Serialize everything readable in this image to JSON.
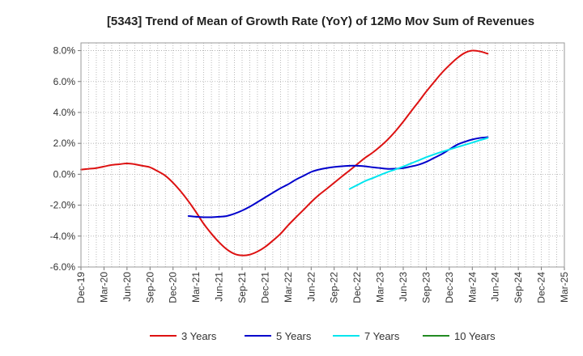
{
  "chart_data": {
    "type": "line",
    "title": "[5343]  Trend of Mean of Growth Rate (YoY) of 12Mo Mov Sum of Revenues",
    "xlabel": "",
    "ylabel": "",
    "x_tick_labels": [
      "Dec-19",
      "Mar-20",
      "Jun-20",
      "Sep-20",
      "Dec-20",
      "Mar-21",
      "Jun-21",
      "Sep-21",
      "Dec-21",
      "Mar-22",
      "Jun-22",
      "Sep-22",
      "Dec-22",
      "Mar-23",
      "Jun-23",
      "Sep-23",
      "Dec-23",
      "Mar-24",
      "Jun-24",
      "Sep-24",
      "Dec-24",
      "Mar-25"
    ],
    "y_tick_labels": [
      "8.0%",
      "6.0%",
      "4.0%",
      "2.0%",
      "0.0%",
      "-2.0%",
      "-4.0%",
      "-6.0%"
    ],
    "y_ticks": [
      8,
      6,
      4,
      2,
      0,
      -2,
      -4,
      -6
    ],
    "ylim": [
      -6,
      8.5
    ],
    "x_range_quarters": [
      0,
      21
    ],
    "grid": true,
    "legend_position": "bottom",
    "series": [
      {
        "name": "3 Years",
        "color": "#dd1111",
        "points": [
          [
            0,
            0.3
          ],
          [
            0.33,
            0.35
          ],
          [
            0.67,
            0.4
          ],
          [
            1,
            0.5
          ],
          [
            1.33,
            0.6
          ],
          [
            1.67,
            0.65
          ],
          [
            2,
            0.7
          ],
          [
            2.33,
            0.65
          ],
          [
            2.67,
            0.55
          ],
          [
            3,
            0.45
          ],
          [
            3.33,
            0.2
          ],
          [
            3.67,
            -0.1
          ],
          [
            4,
            -0.55
          ],
          [
            4.33,
            -1.1
          ],
          [
            4.67,
            -1.75
          ],
          [
            5,
            -2.45
          ],
          [
            5.33,
            -3.2
          ],
          [
            5.67,
            -3.85
          ],
          [
            6,
            -4.4
          ],
          [
            6.33,
            -4.85
          ],
          [
            6.67,
            -5.15
          ],
          [
            7,
            -5.25
          ],
          [
            7.33,
            -5.2
          ],
          [
            7.67,
            -5.0
          ],
          [
            8,
            -4.7
          ],
          [
            8.33,
            -4.3
          ],
          [
            8.67,
            -3.85
          ],
          [
            9,
            -3.3
          ],
          [
            9.33,
            -2.8
          ],
          [
            9.67,
            -2.3
          ],
          [
            10,
            -1.8
          ],
          [
            10.33,
            -1.35
          ],
          [
            10.67,
            -0.95
          ],
          [
            11,
            -0.55
          ],
          [
            11.33,
            -0.15
          ],
          [
            11.67,
            0.25
          ],
          [
            12,
            0.65
          ],
          [
            12.33,
            1.05
          ],
          [
            12.67,
            1.4
          ],
          [
            13,
            1.8
          ],
          [
            13.33,
            2.25
          ],
          [
            13.67,
            2.8
          ],
          [
            14,
            3.4
          ],
          [
            14.33,
            4.05
          ],
          [
            14.67,
            4.7
          ],
          [
            15,
            5.35
          ],
          [
            15.33,
            5.95
          ],
          [
            15.67,
            6.55
          ],
          [
            16,
            7.05
          ],
          [
            16.33,
            7.5
          ],
          [
            16.67,
            7.85
          ],
          [
            17,
            8.0
          ],
          [
            17.33,
            7.95
          ],
          [
            17.67,
            7.8
          ]
        ]
      },
      {
        "name": "5 Years",
        "color": "#0000cc",
        "points": [
          [
            4.67,
            -2.7
          ],
          [
            5,
            -2.75
          ],
          [
            5.33,
            -2.78
          ],
          [
            5.67,
            -2.78
          ],
          [
            6,
            -2.75
          ],
          [
            6.33,
            -2.7
          ],
          [
            6.67,
            -2.55
          ],
          [
            7,
            -2.35
          ],
          [
            7.33,
            -2.1
          ],
          [
            7.67,
            -1.8
          ],
          [
            8,
            -1.5
          ],
          [
            8.33,
            -1.2
          ],
          [
            8.67,
            -0.9
          ],
          [
            9,
            -0.65
          ],
          [
            9.33,
            -0.35
          ],
          [
            9.67,
            -0.1
          ],
          [
            10,
            0.15
          ],
          [
            10.33,
            0.3
          ],
          [
            10.67,
            0.4
          ],
          [
            11,
            0.47
          ],
          [
            11.33,
            0.52
          ],
          [
            11.67,
            0.55
          ],
          [
            12,
            0.55
          ],
          [
            12.33,
            0.52
          ],
          [
            12.67,
            0.45
          ],
          [
            13,
            0.4
          ],
          [
            13.33,
            0.35
          ],
          [
            13.67,
            0.36
          ],
          [
            14,
            0.4
          ],
          [
            14.33,
            0.5
          ],
          [
            14.67,
            0.62
          ],
          [
            15,
            0.8
          ],
          [
            15.33,
            1.05
          ],
          [
            15.67,
            1.3
          ],
          [
            16,
            1.6
          ],
          [
            16.33,
            1.9
          ],
          [
            16.67,
            2.1
          ],
          [
            17,
            2.25
          ],
          [
            17.33,
            2.35
          ],
          [
            17.67,
            2.4
          ]
        ]
      },
      {
        "name": "7 Years",
        "color": "#00e5ee",
        "points": [
          [
            11.67,
            -0.95
          ],
          [
            12,
            -0.7
          ],
          [
            12.33,
            -0.45
          ],
          [
            12.67,
            -0.25
          ],
          [
            13,
            -0.05
          ],
          [
            13.33,
            0.15
          ],
          [
            13.67,
            0.32
          ],
          [
            14,
            0.5
          ],
          [
            14.33,
            0.7
          ],
          [
            14.67,
            0.9
          ],
          [
            15,
            1.1
          ],
          [
            15.33,
            1.28
          ],
          [
            15.67,
            1.45
          ],
          [
            16,
            1.6
          ],
          [
            16.33,
            1.75
          ],
          [
            16.67,
            1.9
          ],
          [
            17,
            2.05
          ],
          [
            17.33,
            2.2
          ],
          [
            17.67,
            2.35
          ]
        ]
      },
      {
        "name": "10 Years",
        "color": "#228b22",
        "points": []
      }
    ]
  }
}
